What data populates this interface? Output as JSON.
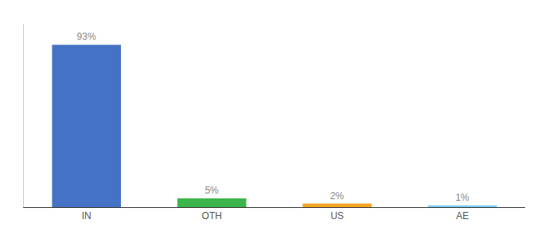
{
  "chart_data": {
    "type": "bar",
    "categories": [
      "IN",
      "OTH",
      "US",
      "AE"
    ],
    "values": [
      93,
      5,
      2,
      1
    ],
    "value_labels": [
      "93%",
      "5%",
      "2%",
      "1%"
    ],
    "colors": [
      "#4472c4",
      "#3cb54a",
      "#f5a623",
      "#7ecef4"
    ],
    "data_labels": true,
    "ylim": [
      0,
      105
    ],
    "tick_labels": "x",
    "grid": false
  }
}
